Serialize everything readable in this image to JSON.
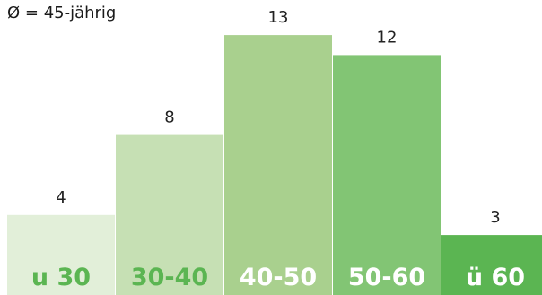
{
  "chart_data": {
    "type": "bar",
    "subtitle": "Ø = 45-jährig",
    "categories": [
      "u 30",
      "30-40",
      "40-50",
      "50-60",
      "ü 60"
    ],
    "values": [
      4,
      8,
      13,
      12,
      3
    ],
    "ylim": [
      0,
      14
    ],
    "grid": false,
    "colors": {
      "bars": [
        "#e2efd9",
        "#c6e0b4",
        "#a9d08e",
        "#82c574",
        "#5bb552"
      ],
      "category_label_text": [
        "#5bb552",
        "#5bb552",
        "#ffffff",
        "#ffffff",
        "#ffffff"
      ],
      "value_label_text": "#222222"
    }
  }
}
